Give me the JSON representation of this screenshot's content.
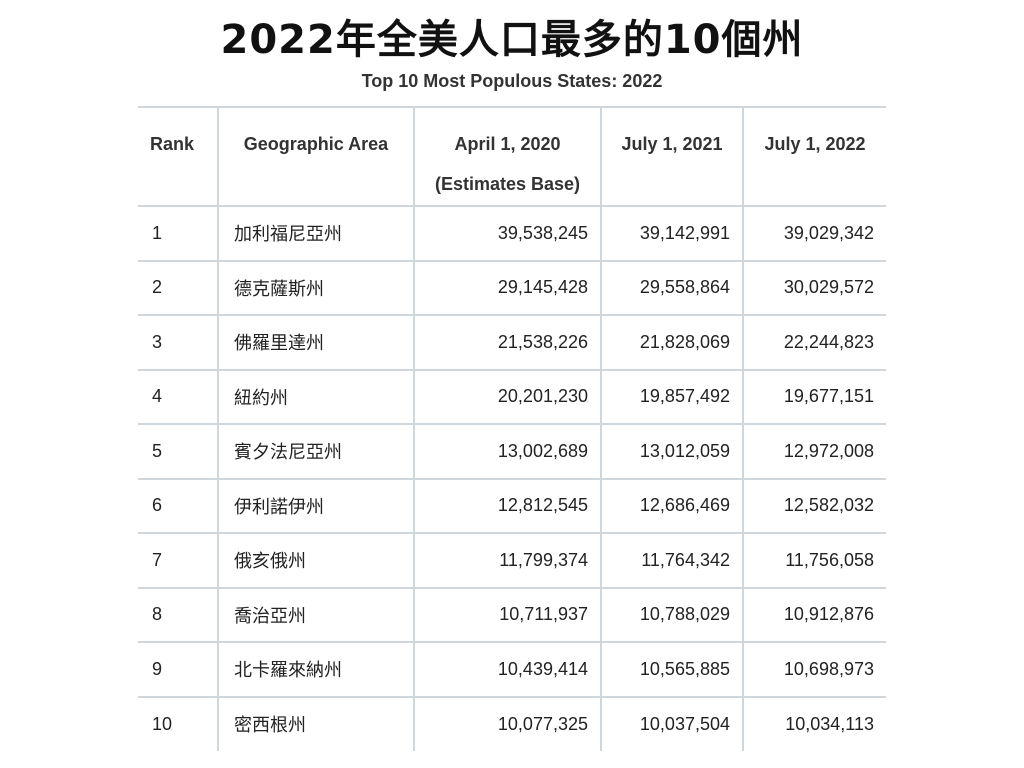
{
  "title": "2022年全美人口最多的10個州",
  "subtitle": "Top 10 Most Populous States: 2022",
  "table": {
    "headers": {
      "rank": "Rank",
      "area": "Geographic Area",
      "april_2020_line1": "April 1, 2020",
      "april_2020_line2": "(Estimates Base)",
      "july_2021": "July 1, 2021",
      "july_2022": "July 1, 2022"
    },
    "rows": [
      {
        "rank": "1",
        "area": "加利福尼亞州",
        "april_2020": "39,538,245",
        "july_2021": "39,142,991",
        "july_2022": "39,029,342"
      },
      {
        "rank": "2",
        "area": "德克薩斯州",
        "april_2020": "29,145,428",
        "july_2021": "29,558,864",
        "july_2022": "30,029,572"
      },
      {
        "rank": "3",
        "area": "佛羅里達州",
        "april_2020": "21,538,226",
        "july_2021": "21,828,069",
        "july_2022": "22,244,823"
      },
      {
        "rank": "4",
        "area": "紐約州",
        "april_2020": "20,201,230",
        "july_2021": "19,857,492",
        "july_2022": "19,677,151"
      },
      {
        "rank": "5",
        "area": "賓夕法尼亞州",
        "april_2020": "13,002,689",
        "july_2021": "13,012,059",
        "july_2022": "12,972,008"
      },
      {
        "rank": "6",
        "area": "伊利諾伊州",
        "april_2020": "12,812,545",
        "july_2021": "12,686,469",
        "july_2022": "12,582,032"
      },
      {
        "rank": "7",
        "area": "俄亥俄州",
        "april_2020": "11,799,374",
        "july_2021": "11,764,342",
        "july_2022": "11,756,058"
      },
      {
        "rank": "8",
        "area": "喬治亞州",
        "april_2020": "10,711,937",
        "july_2021": "10,788,029",
        "july_2022": "10,912,876"
      },
      {
        "rank": "9",
        "area": "北卡羅來納州",
        "april_2020": "10,439,414",
        "july_2021": "10,565,885",
        "july_2022": "10,698,973"
      },
      {
        "rank": "10",
        "area": "密西根州",
        "april_2020": "10,077,325",
        "july_2021": "10,037,504",
        "july_2022": "10,034,113"
      }
    ]
  },
  "colors": {
    "grid_line": "#cfd6dc",
    "text": "#222222",
    "title": "#111111"
  }
}
